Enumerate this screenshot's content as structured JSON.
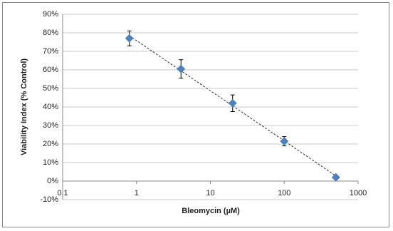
{
  "chart_data": {
    "type": "scatter",
    "x_label": "Bleomycin (µM)",
    "y_label": "Viability Index (% Control)",
    "x": [
      0.8,
      4,
      20,
      100,
      500
    ],
    "series": [
      {
        "color": "#4f81bd",
        "values": [
          77,
          60.5,
          42,
          21.5,
          2
        ],
        "errors": [
          4,
          5,
          4.5,
          2.5,
          1
        ]
      }
    ],
    "xlim": [
      0.1,
      1000
    ],
    "xticks": [
      0.1,
      1,
      10,
      100,
      1000
    ],
    "xlog": true,
    "ylim": [
      -10,
      90
    ],
    "yticks": [
      {
        "value": -10,
        "label": "-10%"
      },
      {
        "value": 0,
        "label": "0%"
      },
      {
        "value": 10,
        "label": "10%"
      },
      {
        "value": 20,
        "label": "20%"
      },
      {
        "value": 30,
        "label": "30%"
      },
      {
        "value": 40,
        "label": "40%"
      },
      {
        "value": 50,
        "label": "50%"
      },
      {
        "value": 60,
        "label": "60%"
      },
      {
        "value": 70,
        "label": "70%"
      },
      {
        "value": 80,
        "label": "80%"
      },
      {
        "value": 90,
        "label": "90%"
      }
    ],
    "grid": true,
    "trendline": true
  }
}
